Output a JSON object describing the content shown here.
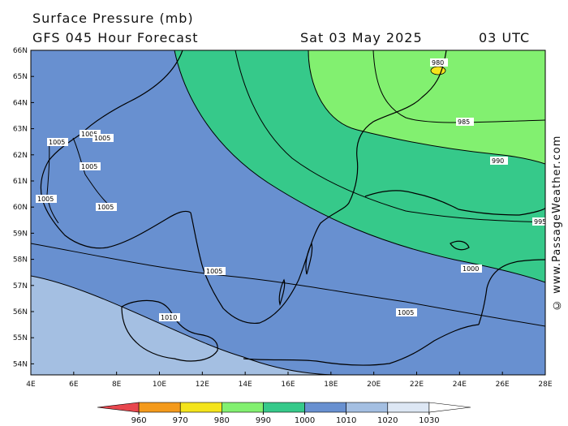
{
  "title": {
    "variable": "Surface Pressure (mb)",
    "model": "GFS 045 Hour Forecast",
    "date": "Sat 03 May 2025",
    "time": "03 UTC"
  },
  "axes": {
    "lat_labels": [
      "66N",
      "65N",
      "64N",
      "63N",
      "62N",
      "61N",
      "60N",
      "59N",
      "58N",
      "57N",
      "56N",
      "55N",
      "54N"
    ],
    "lon_labels": [
      "4E",
      "6E",
      "8E",
      "10E",
      "12E",
      "14E",
      "16E",
      "18E",
      "20E",
      "22E",
      "24E",
      "26E",
      "28E"
    ]
  },
  "isobars": [
    {
      "label": "980",
      "value": 980
    },
    {
      "label": "985",
      "value": 985
    },
    {
      "label": "990",
      "value": 990
    },
    {
      "label": "995",
      "value": 995
    },
    {
      "label": "1000",
      "value": 1000
    },
    {
      "label": "1005",
      "value": 1005
    },
    {
      "label": "1010",
      "value": 1010
    }
  ],
  "legend": {
    "labels": [
      "960",
      "970",
      "980",
      "990",
      "1000",
      "1010",
      "1020",
      "1030"
    ],
    "colors": [
      "#e8474e",
      "#f49a1c",
      "#f4e41c",
      "#82f070",
      "#36c98a",
      "#6890d0",
      "#a4bfe2",
      "#dde7f4",
      "#ffffff"
    ]
  },
  "credit": "© www.PassageWeather.com"
}
